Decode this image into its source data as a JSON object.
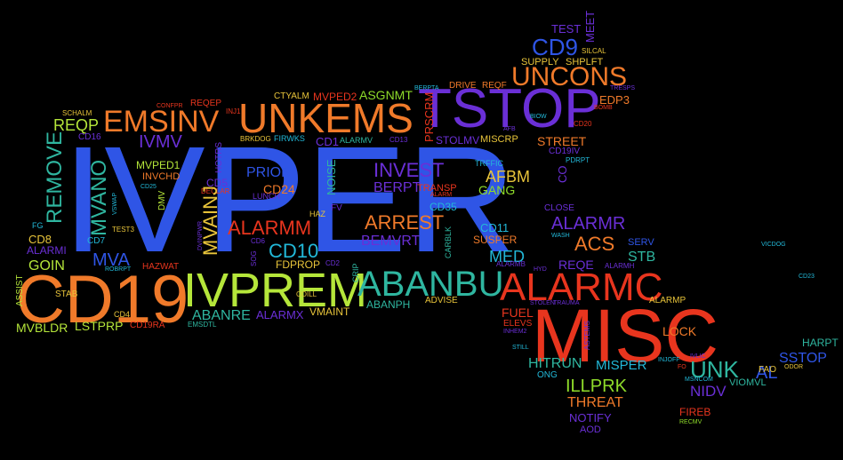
{
  "colors": {
    "background": "#000000",
    "blue": "#2f55e6",
    "purple": "#6a2fd6",
    "orange": "#f07a2a",
    "red": "#e8351e",
    "green": "#8fdc2a",
    "lime": "#b5e63a",
    "teal": "#2fb6a0",
    "cyan": "#22b8d8",
    "yellow": "#e8c43a"
  },
  "words": [
    "IVPER",
    "MISC",
    "CD19",
    "TSTOP",
    "IVPREM",
    "UNKEMS",
    "ALARMC",
    "ABANBU",
    "EMSINV",
    "UNCONS",
    "CD9",
    "TEST",
    "MEET",
    "SILCAL",
    "SUPPLY",
    "SHPLFT",
    "DRIVE",
    "REQF",
    "BERPTA",
    "TRESPS",
    "EDP3",
    "BOMB",
    "CTYALM",
    "MVPED2",
    "ASGNMT",
    "CONFPR",
    "REQEP",
    "INJ1",
    "SCHALM",
    "REQP",
    "CD16",
    "REMOVE",
    "IVMV",
    "MVPED1",
    "INVCHD",
    "HOTRS",
    "CD25",
    "DMV",
    "DECLAR",
    "CD5",
    "MVAINJ",
    "MVANO",
    "VSWAP",
    "FG",
    "CD8",
    "ALARMI",
    "GOIN",
    "CD7",
    "MVA",
    "TEST3",
    "ROBRPT",
    "HAZWAT",
    "DVINPWR",
    "ASSIST",
    "STAB",
    "CD4",
    "MVBLDR",
    "LSTPRP",
    "CD19RA",
    "EMSDTL",
    "ABANRE",
    "ALARMX",
    "VMAINT",
    "COILL",
    "CD2",
    "CRIP",
    "HAZ",
    "FV",
    "PRIOR",
    "CD24",
    "LUNCH",
    "ALARMM",
    "CD10",
    "CD6",
    "SOG",
    "FDPROP",
    "NOISE",
    "BRKDOG",
    "FIRWKS",
    "CD1",
    "ALARMV",
    "CD13",
    "PRSCRM",
    "STOLMV",
    "MISCRP",
    "AFB",
    "BIOW",
    "CD20",
    "STREET",
    "CD19IV",
    "PDRPT",
    "TRFFIC",
    "CO",
    "INVEST",
    "BERPT",
    "TRANSP",
    "ALARM",
    "AFBM",
    "GANG",
    "CD35",
    "ARREST",
    "BEMVRT",
    "CARBLK",
    "CD11",
    "SUSPER",
    "CLOSE",
    "ALARMR",
    "WASH",
    "ACS",
    "SERV",
    "STB",
    "MED",
    "ALARMB",
    "REQE",
    "ALARMH",
    "HYD",
    "ABANPH",
    "ADVISE",
    "ALARMP",
    "FUEL",
    "STOLEN",
    "TRAUMA",
    "ELEVS",
    "INHEM2",
    "STILL",
    "ASTEMS",
    "LOCK",
    "HITRUN",
    "MISPER",
    "ONG",
    "INJOFF",
    "IVLIC",
    "UNK",
    "NIDV",
    "FO",
    "MSNCOM",
    "VIOMVL",
    "AL",
    "FAO",
    "SSTOP",
    "ODOR",
    "HARPT",
    "ILLPRK",
    "THREAT",
    "NOTIFY",
    "AOD",
    "FIREB",
    "RECMV",
    "VICDOG",
    "CD23"
  ]
}
